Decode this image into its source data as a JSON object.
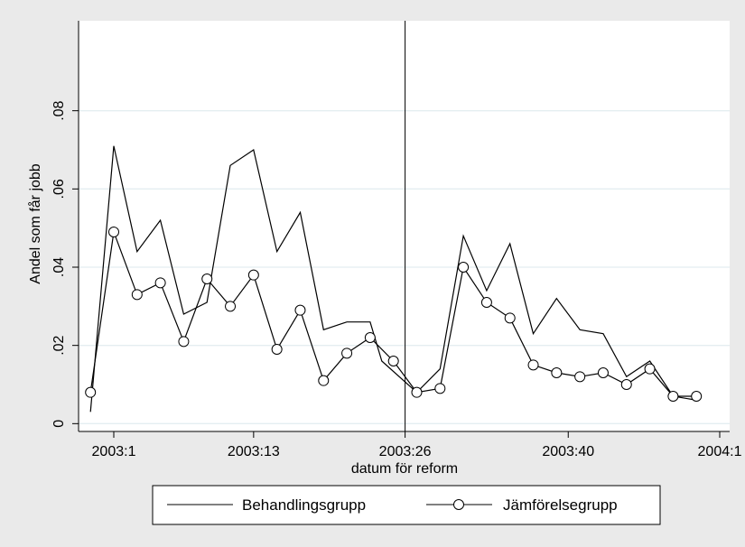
{
  "chart_data": {
    "type": "line",
    "xlabel": "datum för reform",
    "ylabel": "Andel som får jobb",
    "x_ticks": [
      "2003:1",
      "2003:13",
      "2003:26",
      "2003:40",
      "2004:1"
    ],
    "y_ticks": [
      "0",
      ".02",
      ".04",
      ".06",
      ".08"
    ],
    "ylim": [
      -0.002,
      0.103
    ],
    "reference_line_at": "2003:26",
    "grid": "horizontal",
    "legend_position": "bottom",
    "series": [
      {
        "name": "Behandlingsgrupp",
        "marker": "none",
        "points": [
          {
            "t": "2002:51",
            "y": 0.003
          },
          {
            "t": "2003:1",
            "y": 0.071
          },
          {
            "t": "2003:3",
            "y": 0.044
          },
          {
            "t": "2003:5",
            "y": 0.052
          },
          {
            "t": "2003:7",
            "y": 0.028
          },
          {
            "t": "2003:9",
            "y": 0.031
          },
          {
            "t": "2003:11",
            "y": 0.066
          },
          {
            "t": "2003:13",
            "y": 0.07
          },
          {
            "t": "2003:15",
            "y": 0.044
          },
          {
            "t": "2003:17",
            "y": 0.054
          },
          {
            "t": "2003:19",
            "y": 0.024
          },
          {
            "t": "2003:21",
            "y": 0.026
          },
          {
            "t": "2003:23",
            "y": 0.026
          },
          {
            "t": "2003:24",
            "y": 0.016
          },
          {
            "t": "2003:27",
            "y": 0.008
          },
          {
            "t": "2003:29",
            "y": 0.014
          },
          {
            "t": "2003:31",
            "y": 0.048
          },
          {
            "t": "2003:33",
            "y": 0.034
          },
          {
            "t": "2003:35",
            "y": 0.046
          },
          {
            "t": "2003:37",
            "y": 0.023
          },
          {
            "t": "2003:39",
            "y": 0.032
          },
          {
            "t": "2003:41",
            "y": 0.024
          },
          {
            "t": "2003:43",
            "y": 0.023
          },
          {
            "t": "2003:45",
            "y": 0.012
          },
          {
            "t": "2003:47",
            "y": 0.016
          },
          {
            "t": "2003:49",
            "y": 0.007
          },
          {
            "t": "2003:51",
            "y": 0.006
          }
        ]
      },
      {
        "name": "Jämförelsegrupp",
        "marker": "hollow-circle",
        "points": [
          {
            "t": "2002:51",
            "y": 0.008
          },
          {
            "t": "2003:1",
            "y": 0.049
          },
          {
            "t": "2003:3",
            "y": 0.033
          },
          {
            "t": "2003:5",
            "y": 0.036
          },
          {
            "t": "2003:7",
            "y": 0.021
          },
          {
            "t": "2003:9",
            "y": 0.037
          },
          {
            "t": "2003:11",
            "y": 0.03
          },
          {
            "t": "2003:13",
            "y": 0.038
          },
          {
            "t": "2003:15",
            "y": 0.019
          },
          {
            "t": "2003:17",
            "y": 0.029
          },
          {
            "t": "2003:19",
            "y": 0.011
          },
          {
            "t": "2003:21",
            "y": 0.018
          },
          {
            "t": "2003:23",
            "y": 0.022
          },
          {
            "t": "2003:25",
            "y": 0.016
          },
          {
            "t": "2003:27",
            "y": 0.008
          },
          {
            "t": "2003:29",
            "y": 0.009
          },
          {
            "t": "2003:31",
            "y": 0.04
          },
          {
            "t": "2003:33",
            "y": 0.031
          },
          {
            "t": "2003:35",
            "y": 0.027
          },
          {
            "t": "2003:37",
            "y": 0.015
          },
          {
            "t": "2003:39",
            "y": 0.013
          },
          {
            "t": "2003:41",
            "y": 0.012
          },
          {
            "t": "2003:43",
            "y": 0.013
          },
          {
            "t": "2003:45",
            "y": 0.01
          },
          {
            "t": "2003:47",
            "y": 0.014
          },
          {
            "t": "2003:49",
            "y": 0.007
          },
          {
            "t": "2003:51",
            "y": 0.007
          }
        ]
      }
    ]
  },
  "colors": {
    "page_background": "#eaeaea",
    "plot_background": "#ffffff",
    "gridline": "#e4eef1",
    "series_line": "#000000"
  }
}
